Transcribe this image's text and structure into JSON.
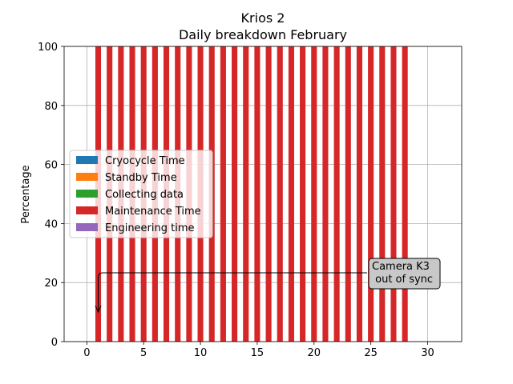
{
  "chart_data": {
    "type": "bar",
    "stacked": true,
    "title": "Krios 2",
    "subtitle": "Daily breakdown February",
    "xlabel": "",
    "ylabel": "Percentage",
    "xlim": [
      -2,
      33
    ],
    "ylim": [
      0,
      100
    ],
    "xticks": [
      0,
      5,
      10,
      15,
      20,
      25,
      30
    ],
    "yticks": [
      0,
      20,
      40,
      60,
      80,
      100
    ],
    "grid": true,
    "legend_position": "center-left",
    "x": [
      1,
      2,
      3,
      4,
      5,
      6,
      7,
      8,
      9,
      10,
      11,
      12,
      13,
      14,
      15,
      16,
      17,
      18,
      19,
      20,
      21,
      22,
      23,
      24,
      25,
      26,
      27,
      28
    ],
    "series": [
      {
        "name": "Cryocycle Time",
        "color": "#1f77b4",
        "values": [
          0,
          0,
          0,
          0,
          0,
          0,
          0,
          0,
          0,
          0,
          0,
          0,
          0,
          0,
          0,
          0,
          0,
          0,
          0,
          0,
          0,
          0,
          0,
          0,
          0,
          0,
          0,
          0
        ]
      },
      {
        "name": "Standby Time",
        "color": "#ff7f0e",
        "values": [
          0,
          0,
          0,
          0,
          0,
          0,
          0,
          0,
          0,
          0,
          0,
          0,
          0,
          0,
          0,
          0,
          0,
          0,
          0,
          0,
          0,
          0,
          0,
          0,
          0,
          0,
          0,
          0
        ]
      },
      {
        "name": "Collecting data",
        "color": "#2ca02c",
        "values": [
          0,
          0,
          0,
          0,
          0,
          0,
          0,
          0,
          0,
          0,
          0,
          0,
          0,
          0,
          0,
          0,
          0,
          0,
          0,
          0,
          0,
          0,
          0,
          0,
          0,
          0,
          0,
          0
        ]
      },
      {
        "name": "Maintenance Time",
        "color": "#d62728",
        "values": [
          100,
          100,
          100,
          100,
          100,
          100,
          100,
          100,
          100,
          100,
          100,
          100,
          100,
          100,
          100,
          100,
          100,
          100,
          100,
          100,
          100,
          100,
          100,
          100,
          100,
          100,
          100,
          100
        ]
      },
      {
        "name": "Engineering time",
        "color": "#9467bd",
        "values": [
          0,
          0,
          0,
          0,
          0,
          0,
          0,
          0,
          0,
          0,
          0,
          0,
          0,
          0,
          0,
          0,
          0,
          0,
          0,
          0,
          0,
          0,
          0,
          0,
          0,
          0,
          0,
          0
        ]
      }
    ],
    "annotation": {
      "text_lines": [
        "Camera K3",
        " out of sync"
      ],
      "arrow_target": [
        1,
        10
      ],
      "text_anchor": [
        25,
        20
      ],
      "box_color": "#c8c8c8"
    }
  }
}
